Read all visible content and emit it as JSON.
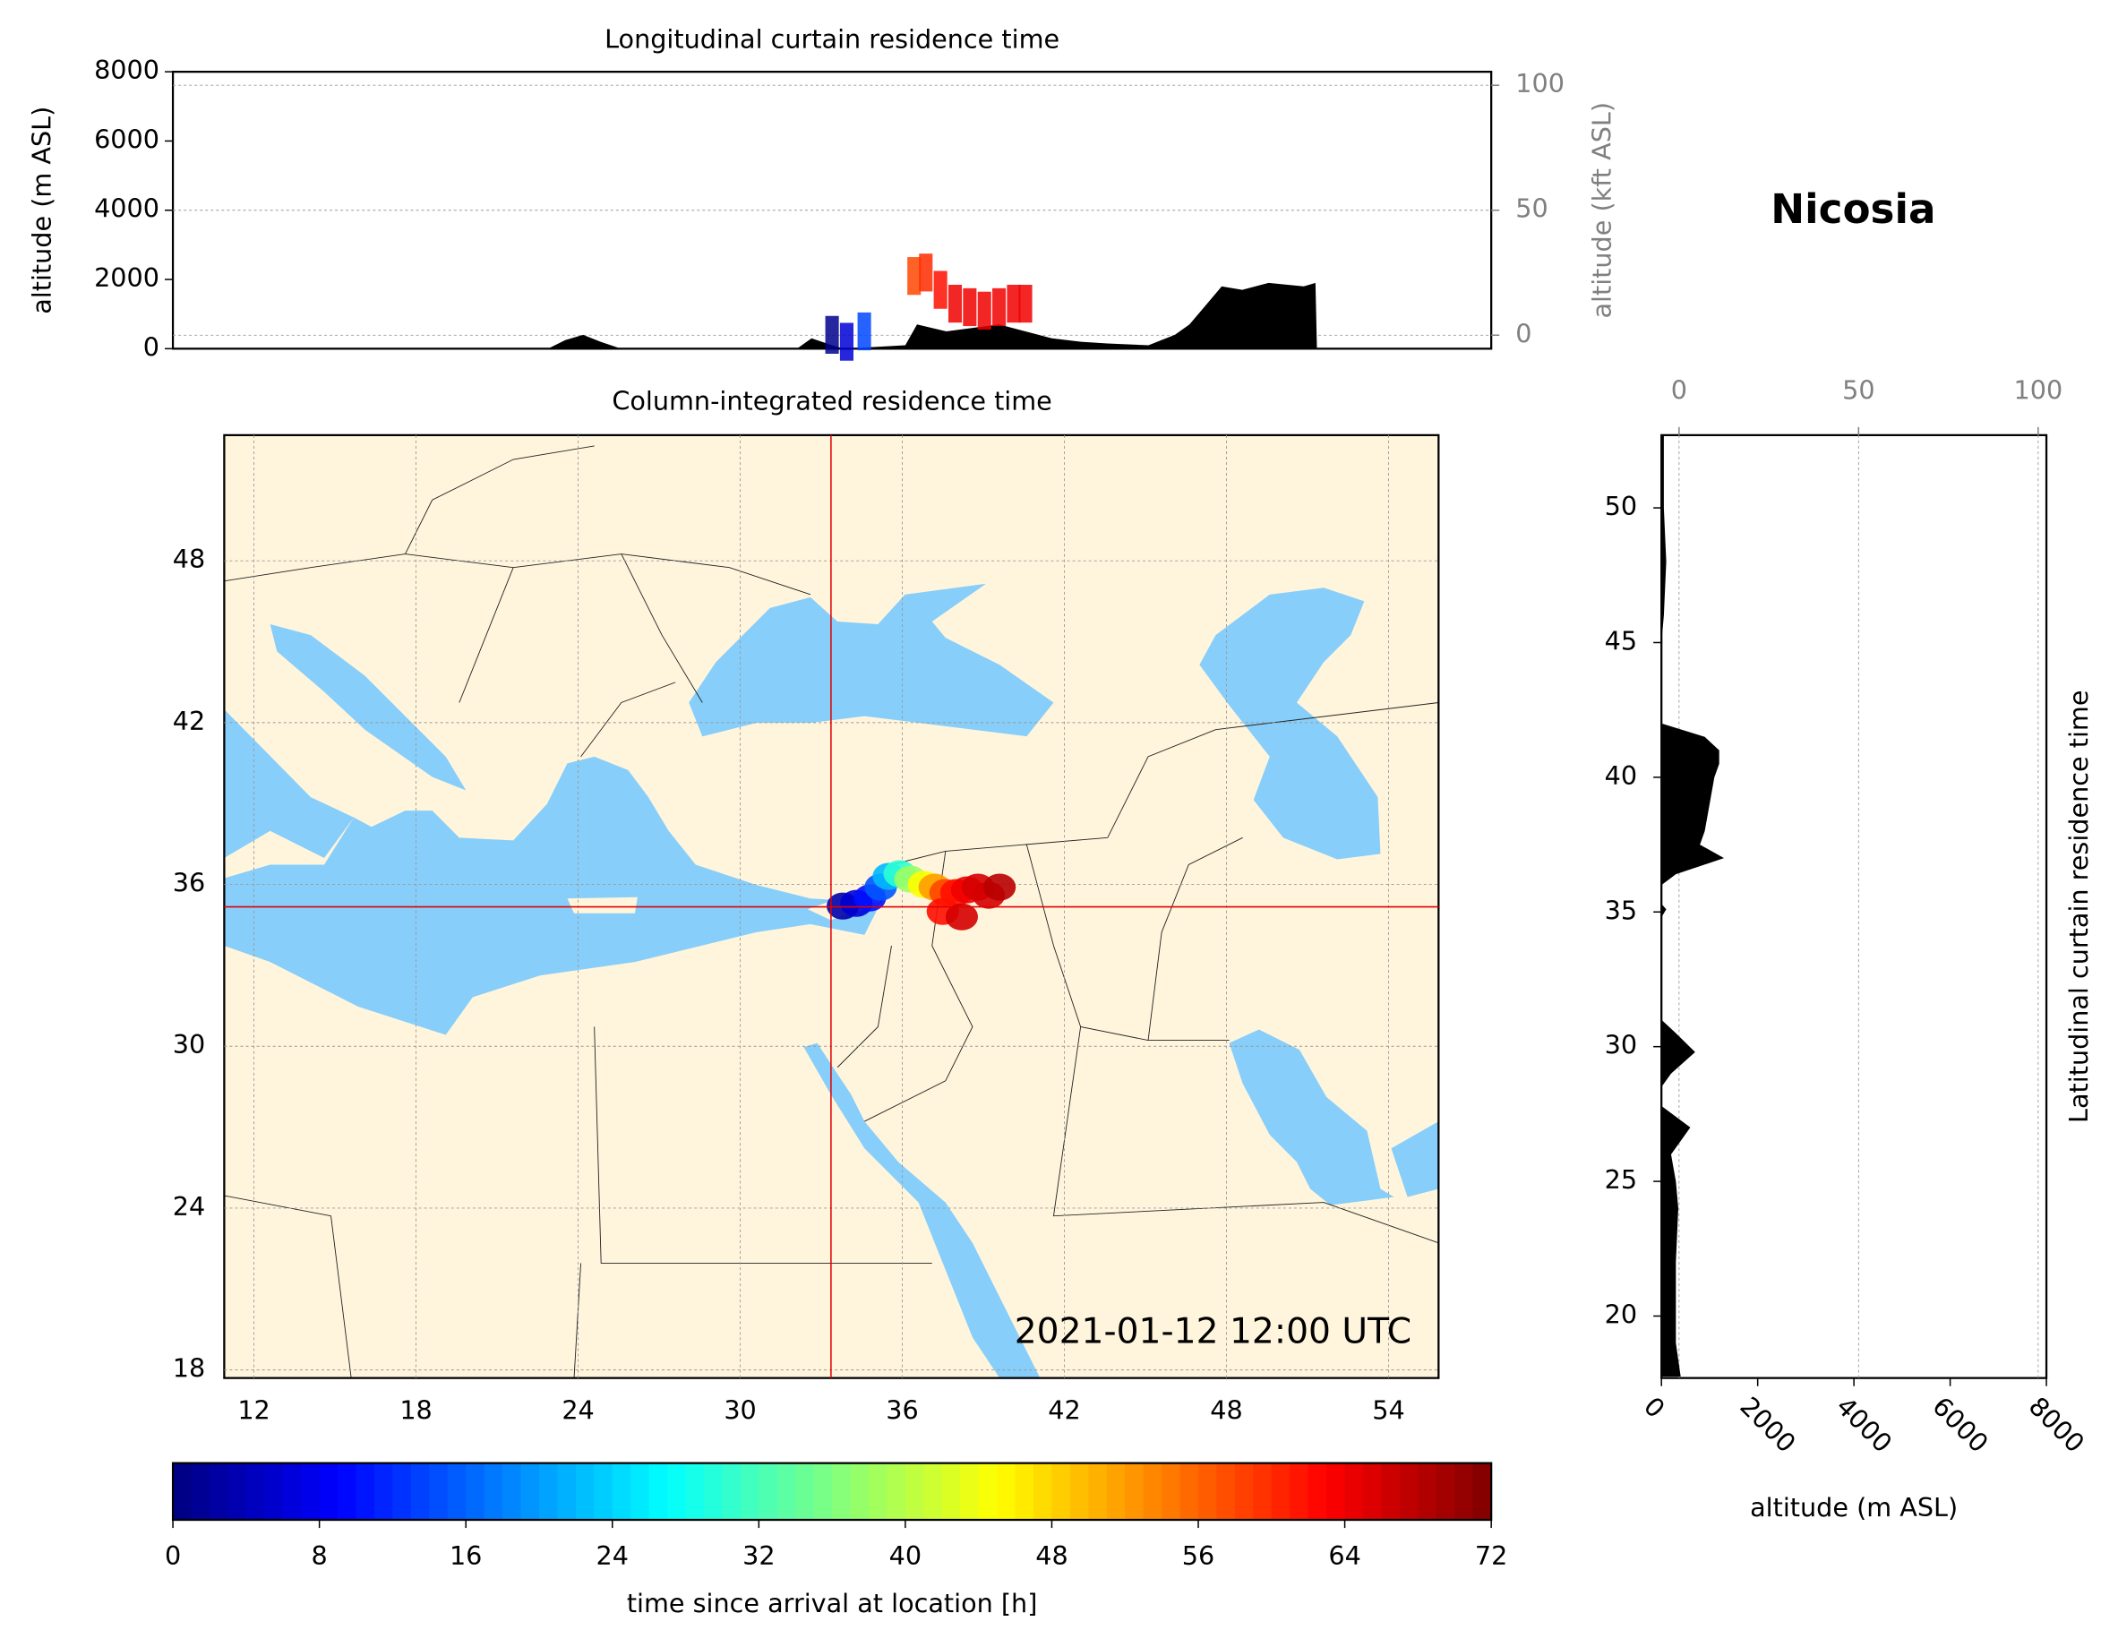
{
  "title": "Nicosia",
  "chart_data": [
    {
      "type": "area",
      "title": "Longitudinal curtain residence time",
      "ylabel": "altitude (m ASL)",
      "y2label": "altitude (kft ASL)",
      "xlim": [
        11,
        56
      ],
      "ylim": [
        0,
        8000
      ],
      "yticks": [
        0,
        2000,
        4000,
        6000,
        8000
      ],
      "y2lim": [
        -5.4,
        105.4
      ],
      "y2ticks": [
        0,
        50,
        100
      ],
      "grid": true,
      "color": "#000000",
      "x": [
        23.8,
        24.4,
        25.0,
        25.6,
        26.3,
        32.3,
        32.8,
        33.5,
        33.9,
        36.0,
        36.4,
        37.4,
        38.3,
        39.2,
        40.1,
        41.0,
        42.0,
        42.9,
        44.3,
        45.2,
        45.7,
        46.4,
        46.8,
        47.5,
        48.4,
        49.6,
        50.0,
        50.05
      ],
      "values": [
        0,
        250,
        400,
        200,
        0,
        0,
        300,
        100,
        0,
        100,
        700,
        500,
        600,
        700,
        500,
        300,
        200,
        150,
        100,
        400,
        700,
        1400,
        1800,
        1700,
        1900,
        1800,
        1900,
        0
      ],
      "plume": {
        "x": [
          33.5,
          34.0,
          34.6,
          36.3,
          36.7,
          37.2,
          37.7,
          38.2,
          38.7,
          39.2,
          39.7,
          40.1
        ],
        "values": [
          400,
          200,
          500,
          2100,
          2200,
          1700,
          1300,
          1200,
          1100,
          1200,
          1300,
          1300
        ],
        "hours": [
          1,
          6,
          14,
          58,
          60,
          62,
          64,
          64,
          64,
          64,
          64,
          64
        ]
      }
    },
    {
      "type": "map",
      "title": "Column-integrated residence time",
      "annotation": "2021-01-12 12:00 UTC",
      "xlim": [
        10.9,
        55.85
      ],
      "ylim": [
        17.7,
        52.66
      ],
      "xticks": [
        12,
        18,
        24,
        30,
        36,
        42,
        48,
        54
      ],
      "yticks": [
        18,
        24,
        30,
        36,
        42,
        48
      ],
      "grid": true,
      "location": {
        "lon": 33.36,
        "lat": 35.17
      },
      "location_color": "#e00000",
      "plume": {
        "lon": [
          33.8,
          34.3,
          34.8,
          35.2,
          35.5,
          35.9,
          36.3,
          36.8,
          37.2,
          37.6,
          38.0,
          38.4,
          38.8,
          39.2,
          39.6,
          37.5,
          38.2
        ],
        "lat": [
          35.2,
          35.3,
          35.5,
          35.9,
          36.3,
          36.4,
          36.2,
          36.0,
          35.9,
          35.7,
          35.7,
          35.8,
          35.9,
          35.6,
          35.9,
          35.0,
          34.8
        ],
        "hours": [
          3,
          6,
          10,
          15,
          22,
          30,
          38,
          45,
          52,
          58,
          62,
          64,
          66,
          66,
          68,
          62,
          66
        ]
      }
    },
    {
      "type": "area",
      "orientation": "horizontal",
      "ylabel": "Latitudinal curtain residence time",
      "xlabel": "altitude (m ASL)",
      "ylim": [
        17.7,
        52.7
      ],
      "yticks": [
        20,
        25,
        30,
        35,
        40,
        45,
        50
      ],
      "xlim": [
        0,
        8000
      ],
      "xticks": [
        0,
        2000,
        4000,
        6000,
        8000
      ],
      "x2lim": [
        -4.9,
        102.3
      ],
      "x2ticks": [
        0,
        50,
        100
      ],
      "grid": true,
      "color": "#000000",
      "y": [
        17.75,
        19,
        20,
        22,
        24,
        25,
        26,
        27,
        27.8,
        28.5,
        29,
        29.8,
        30.5,
        31,
        34.8,
        35.1,
        35.3,
        36,
        36.4,
        37,
        37.5,
        38,
        39,
        40,
        40.5,
        41,
        41.5,
        42,
        45,
        46,
        48,
        50,
        52.7
      ],
      "values": [
        400,
        300,
        300,
        300,
        350,
        300,
        200,
        600,
        0,
        0,
        200,
        700,
        300,
        0,
        0,
        100,
        0,
        0,
        300,
        1300,
        800,
        900,
        1000,
        1100,
        1200,
        1200,
        900,
        0,
        0,
        50,
        100,
        50,
        50
      ]
    },
    {
      "type": "colorbar",
      "label": "time since arrival at location [h]",
      "colormap": "jet",
      "lim": [
        0,
        72
      ],
      "ticks": [
        0,
        8,
        16,
        24,
        32,
        40,
        48,
        56,
        64,
        72
      ]
    }
  ]
}
